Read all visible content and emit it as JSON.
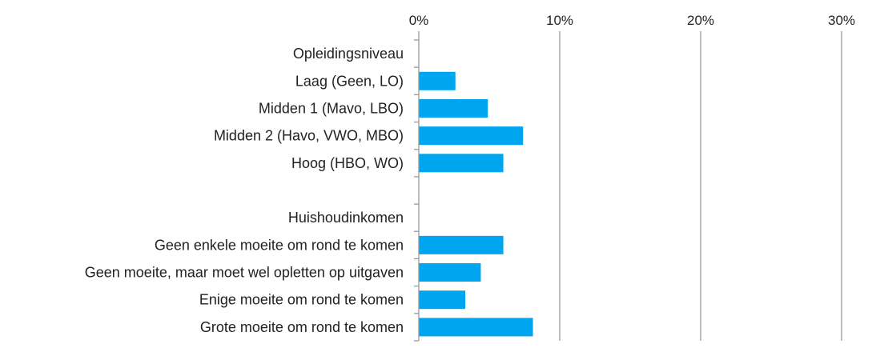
{
  "chart_data": {
    "type": "bar",
    "orientation": "horizontal",
    "categories": [
      "Opleidingsniveau",
      "Laag (Geen, LO)",
      "Midden 1 (Mavo, LBO)",
      "Midden 2 (Havo, VWO, MBO)",
      "Hoog (HBO, WO)",
      "",
      "Huishoudinkomen",
      "Geen enkele moeite om rond te komen",
      "Geen moeite, maar moet wel opletten op uitgaven",
      "Enige moeite om rond te komen",
      "Grote moeite om rond te komen"
    ],
    "values": [
      null,
      2.6,
      4.9,
      7.4,
      6.0,
      null,
      null,
      6.0,
      4.4,
      3.3,
      8.1
    ],
    "xlim": [
      0,
      30
    ],
    "xticks": [
      0,
      10,
      20,
      30
    ],
    "xtick_labels": [
      "0%",
      "10%",
      "20%",
      "30%"
    ],
    "x_axis_position": "top",
    "grid": true,
    "bar_color": "#00A5EF",
    "grid_color": "#999999",
    "title": "",
    "xlabel": "",
    "ylabel": ""
  }
}
